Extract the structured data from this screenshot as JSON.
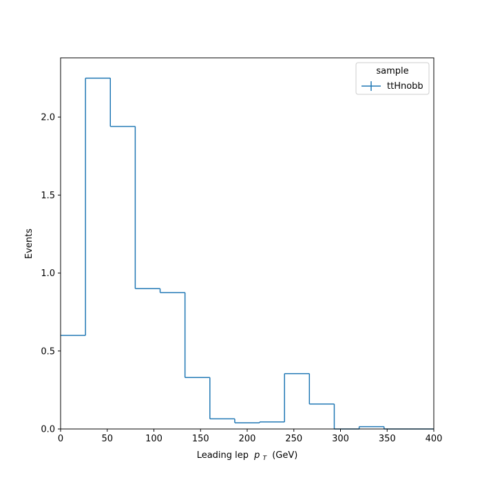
{
  "chart_data": {
    "type": "histogram",
    "xlabel": "Leading lep",
    "xlabel_math": "p",
    "xlabel_sub": "T",
    "xlabel_unit": "(GeV)",
    "ylabel": "Events",
    "xlim": [
      0,
      400
    ],
    "ylim": [
      0,
      2.38
    ],
    "x_ticks": [
      0,
      50,
      100,
      150,
      200,
      250,
      300,
      350,
      400
    ],
    "x_tick_labels": [
      "0",
      "50",
      "100",
      "150",
      "200",
      "250",
      "300",
      "350",
      "400"
    ],
    "y_ticks": [
      0.0,
      0.5,
      1.0,
      1.5,
      2.0
    ],
    "y_tick_labels": [
      "0.0",
      "0.5",
      "1.0",
      "1.5",
      "2.0"
    ],
    "grid": false,
    "legend": {
      "title": "sample",
      "placement": "top-right",
      "entries": [
        "ttHnobb"
      ]
    },
    "bin_edges": [
      0,
      26.67,
      53.33,
      80,
      106.67,
      133.33,
      160,
      186.67,
      213.33,
      240,
      266.67,
      293.33,
      320,
      346.67,
      373.33,
      400
    ],
    "series": [
      {
        "name": "ttHnobb",
        "color": "#1f77b4",
        "values": [
          0.6,
          2.25,
          1.94,
          0.9,
          0.875,
          0.33,
          0.065,
          0.04,
          0.045,
          0.355,
          0.16,
          0.0,
          0.015,
          0.0,
          0.0
        ]
      }
    ]
  }
}
